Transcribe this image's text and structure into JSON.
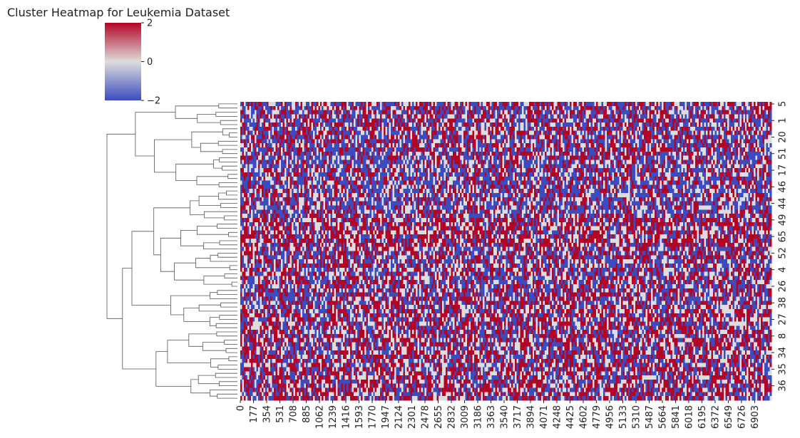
{
  "chart_data": {
    "type": "heatmap",
    "title": "Cluster Heatmap for Leukemia Dataset",
    "colormap": "coolwarm",
    "colors": {
      "low": "#3b4cc0",
      "mid": "#dddddd",
      "high": "#b40426"
    },
    "value_range": [
      -2,
      2
    ],
    "colorbar_ticks": [
      "2",
      "0",
      "−2"
    ],
    "n_rows": 72,
    "n_cols": 7129,
    "row_tick_labels": [
      "5",
      "1",
      "20",
      "51",
      "17",
      "46",
      "44",
      "49",
      "65",
      "52",
      "4",
      "26",
      "38",
      "27",
      "8",
      "34",
      "35",
      "36"
    ],
    "col_tick_labels": [
      "0",
      "177",
      "354",
      "531",
      "708",
      "885",
      "1062",
      "1239",
      "1416",
      "1593",
      "1770",
      "1947",
      "2124",
      "2301",
      "2478",
      "2655",
      "2832",
      "3009",
      "3186",
      "3363",
      "3540",
      "3717",
      "3894",
      "4071",
      "4248",
      "4425",
      "4602",
      "4779",
      "4956",
      "5133",
      "5310",
      "5487",
      "5664",
      "5841",
      "6018",
      "6195",
      "6372",
      "6549",
      "6726",
      "6903"
    ],
    "row_dendrogram": true,
    "col_dendrogram": false
  }
}
